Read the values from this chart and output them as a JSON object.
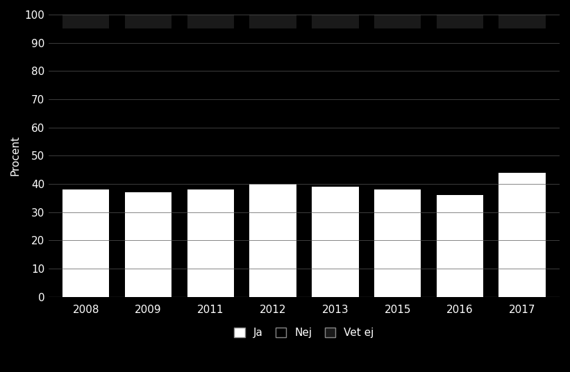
{
  "years": [
    "2008",
    "2009",
    "2011",
    "2012",
    "2013",
    "2015",
    "2016",
    "2017"
  ],
  "ja": [
    38,
    37,
    38,
    40,
    39,
    38,
    36,
    44
  ],
  "nej": [
    57,
    58,
    57,
    55,
    56,
    57,
    59,
    51
  ],
  "vet_ej": [
    5,
    5,
    5,
    5,
    5,
    5,
    5,
    5
  ],
  "colors": {
    "ja": "#ffffff",
    "nej": "#000000",
    "vet_ej": "#1a1a1a"
  },
  "background_color": "#000000",
  "text_color": "#ffffff",
  "grid_color": "#555555",
  "ylabel": "Procent",
  "ylim": [
    0,
    100
  ],
  "yticks": [
    0,
    10,
    20,
    30,
    40,
    50,
    60,
    70,
    80,
    90,
    100
  ],
  "legend_labels": [
    "Ja",
    "Nej",
    "Vet ej"
  ],
  "bar_width": 0.75
}
